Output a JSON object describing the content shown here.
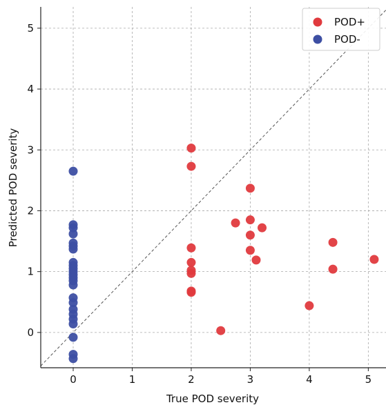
{
  "colors": {
    "pod_plus": "#e03a3e",
    "pod_minus": "#3d4fa3",
    "grid": "#a8a8a8",
    "diagonal": "#555555",
    "axis": "#222222"
  },
  "chart_data": {
    "type": "scatter",
    "xlabel": "True POD severity",
    "ylabel": "Predicted POD severity",
    "xlim": [
      -0.55,
      5.3
    ],
    "ylim": [
      -0.58,
      5.35
    ],
    "xticks": [
      0,
      1,
      2,
      3,
      4,
      5
    ],
    "yticks": [
      0,
      1,
      2,
      3,
      4,
      5
    ],
    "grid": true,
    "diagonal": true,
    "legend": {
      "placement": "top-right"
    },
    "series": [
      {
        "name": "POD+",
        "color": "#e03a3e",
        "points": [
          {
            "x": 2,
            "y": 3.03
          },
          {
            "x": 2,
            "y": 2.73
          },
          {
            "x": 2,
            "y": 1.39
          },
          {
            "x": 2,
            "y": 1.15
          },
          {
            "x": 2,
            "y": 1.02
          },
          {
            "x": 2,
            "y": 0.97
          },
          {
            "x": 2,
            "y": 0.68
          },
          {
            "x": 2,
            "y": 0.66
          },
          {
            "x": 2.5,
            "y": 0.03
          },
          {
            "x": 2.75,
            "y": 1.8
          },
          {
            "x": 3,
            "y": 2.37
          },
          {
            "x": 3,
            "y": 1.85
          },
          {
            "x": 3,
            "y": 1.6
          },
          {
            "x": 3,
            "y": 1.35
          },
          {
            "x": 3.1,
            "y": 1.19
          },
          {
            "x": 3.2,
            "y": 1.72
          },
          {
            "x": 4,
            "y": 0.44
          },
          {
            "x": 4.4,
            "y": 1.48
          },
          {
            "x": 4.4,
            "y": 1.04
          },
          {
            "x": 5.1,
            "y": 1.2
          }
        ]
      },
      {
        "name": "POD-",
        "color": "#3d4fa3",
        "points": [
          {
            "x": 0,
            "y": 2.65
          },
          {
            "x": 0,
            "y": 1.77
          },
          {
            "x": 0,
            "y": 1.72
          },
          {
            "x": 0,
            "y": 1.62
          },
          {
            "x": 0,
            "y": 1.47
          },
          {
            "x": 0,
            "y": 1.42
          },
          {
            "x": 0,
            "y": 1.37
          },
          {
            "x": 0,
            "y": 1.15
          },
          {
            "x": 0,
            "y": 1.1
          },
          {
            "x": 0,
            "y": 1.05
          },
          {
            "x": 0,
            "y": 1.0
          },
          {
            "x": 0,
            "y": 0.95
          },
          {
            "x": 0,
            "y": 0.9
          },
          {
            "x": 0,
            "y": 0.85
          },
          {
            "x": 0,
            "y": 0.78
          },
          {
            "x": 0,
            "y": 0.57
          },
          {
            "x": 0,
            "y": 0.49
          },
          {
            "x": 0,
            "y": 0.38
          },
          {
            "x": 0,
            "y": 0.3
          },
          {
            "x": 0,
            "y": 0.22
          },
          {
            "x": 0,
            "y": 0.14
          },
          {
            "x": 0,
            "y": -0.08
          },
          {
            "x": 0,
            "y": -0.36
          },
          {
            "x": 0,
            "y": -0.43
          }
        ]
      }
    ]
  }
}
